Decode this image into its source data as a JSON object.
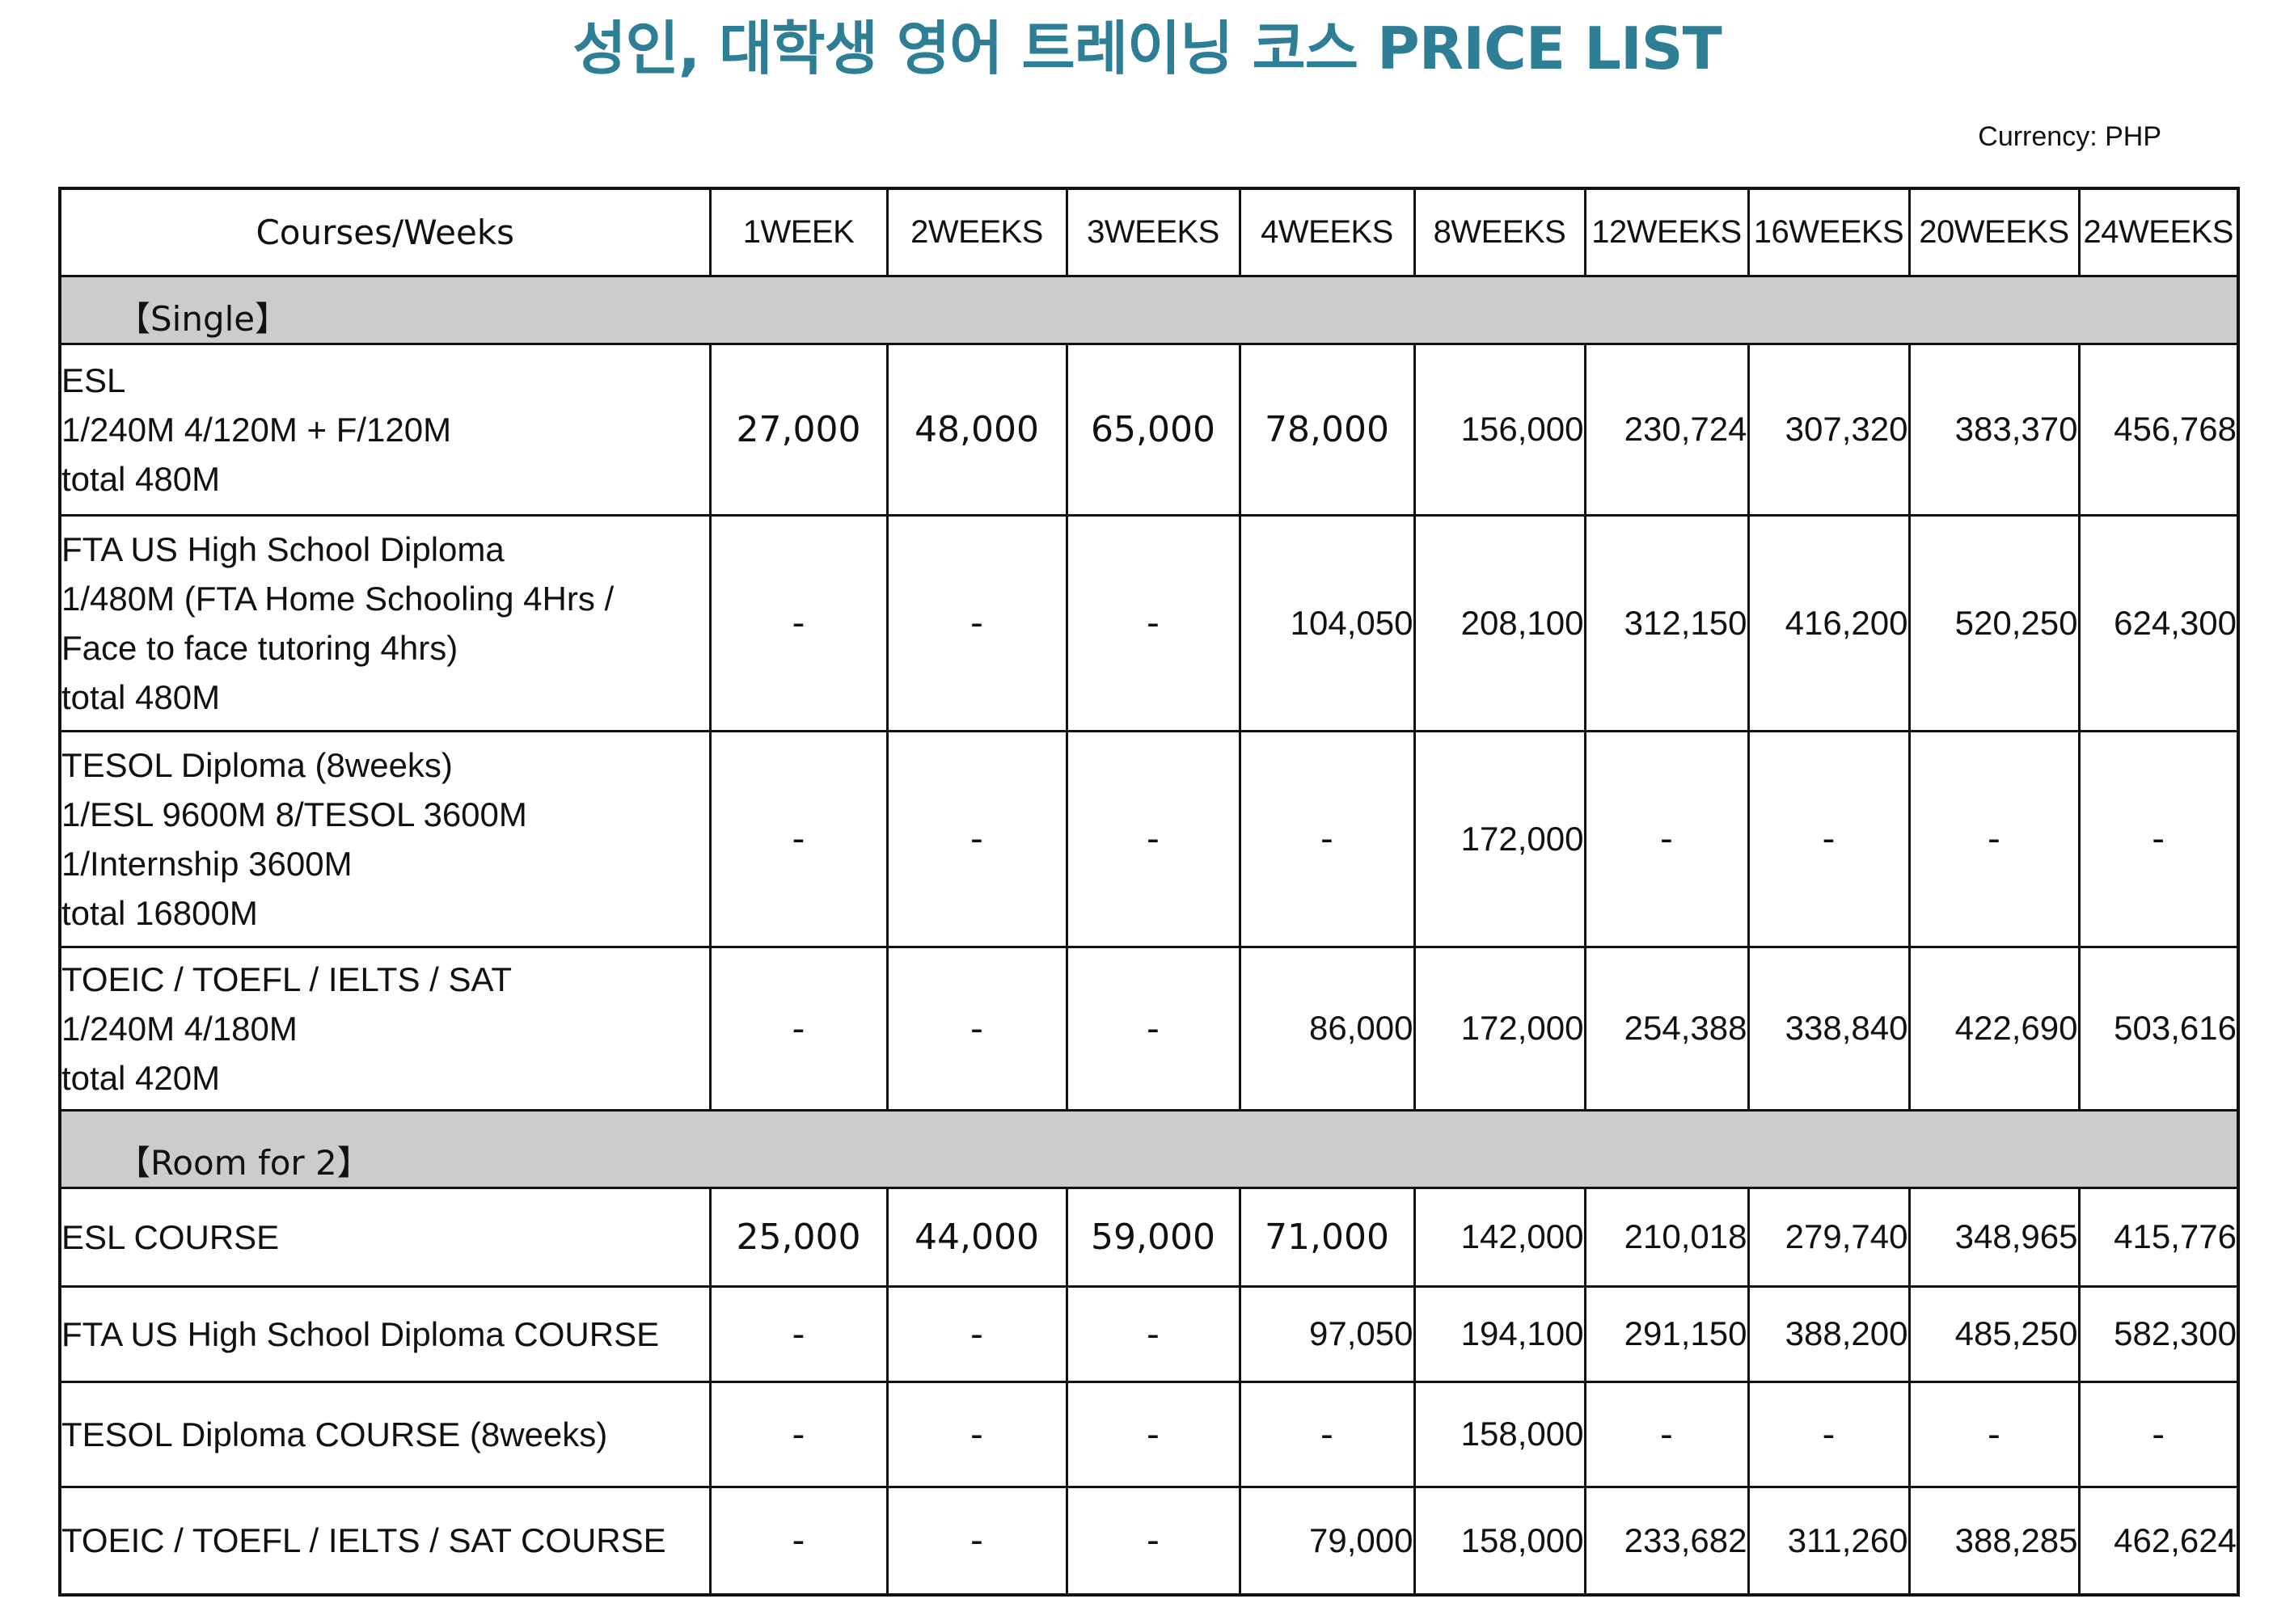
{
  "title": "성인, 대학생 영어 트레이닝 코스 PRICE LIST",
  "currency": "Currency: PHP",
  "colors": {
    "title": "#2e7f96",
    "section_bg": "#cccccc",
    "border": "#111111"
  },
  "table": {
    "headers": [
      "Courses/Weeks",
      "1WEEK",
      "2WEEKS",
      "3WEEKS",
      "4WEEKS",
      "8WEEKS",
      "12WEEKS",
      "16WEEKS",
      "20WEEKS",
      "24WEEKS"
    ],
    "sections": [
      {
        "label": "【Single】",
        "rows": [
          {
            "lines": [
              "ESL",
              "1/240M  4/120M  + F/120M",
              "total 480M"
            ],
            "values": [
              "27,000",
              "48,000",
              "65,000",
              "78,000",
              "156,000",
              "230,724",
              "307,320",
              "383,370",
              "456,768"
            ]
          },
          {
            "lines": [
              "FTA US High School Diploma",
              "1/480M (FTA Home Schooling 4Hrs /",
              "Face to face tutoring 4hrs)",
              "total 480M"
            ],
            "values": [
              "-",
              "-",
              "-",
              "104,050",
              "208,100",
              "312,150",
              "416,200",
              "520,250",
              "624,300"
            ]
          },
          {
            "lines": [
              "TESOL Diploma (8weeks)",
              "1/ESL 9600M  8/TESOL 3600M",
              "1/Internship 3600M",
              "total 16800M"
            ],
            "values": [
              "-",
              "-",
              "-",
              "-",
              "172,000",
              "-",
              "-",
              "-",
              "-"
            ]
          },
          {
            "lines": [
              "TOEIC / TOEFL / IELTS / SAT",
              "1/240M  4/180M",
              "total 420M"
            ],
            "values": [
              "-",
              "-",
              "-",
              "86,000",
              "172,000",
              "254,388",
              "338,840",
              "422,690",
              "503,616"
            ]
          }
        ]
      },
      {
        "label": "【Room for 2】",
        "rows": [
          {
            "lines": [
              "ESL COURSE"
            ],
            "values": [
              "25,000",
              "44,000",
              "59,000",
              "71,000",
              "142,000",
              "210,018",
              "279,740",
              "348,965",
              "415,776"
            ]
          },
          {
            "lines": [
              "FTA US High School Diploma COURSE"
            ],
            "values": [
              "-",
              "-",
              "-",
              "97,050",
              "194,100",
              "291,150",
              "388,200",
              "485,250",
              "582,300"
            ]
          },
          {
            "lines": [
              "TESOL Diploma COURSE (8weeks)"
            ],
            "values": [
              "-",
              "-",
              "-",
              "-",
              "158,000",
              "-",
              "-",
              "-",
              "-"
            ]
          },
          {
            "lines": [
              "TOEIC / TOEFL / IELTS / SAT COURSE"
            ],
            "values": [
              "-",
              "-",
              "-",
              "79,000",
              "158,000",
              "233,682",
              "311,260",
              "388,285",
              "462,624"
            ]
          }
        ]
      }
    ]
  }
}
